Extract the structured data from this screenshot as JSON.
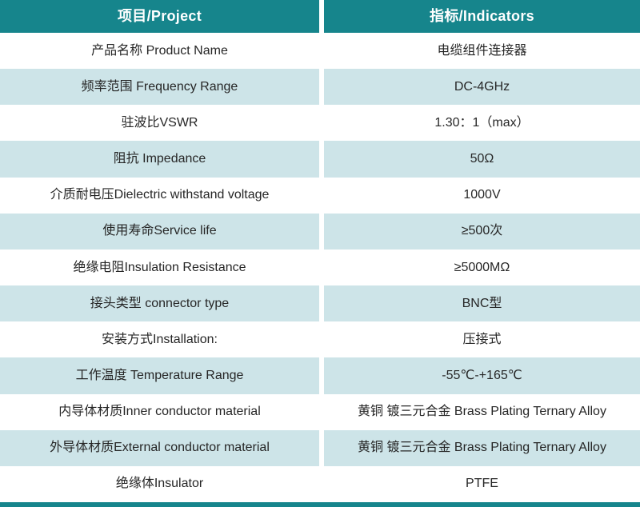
{
  "table": {
    "header": {
      "project": "项目/Project",
      "indicators": "指标/Indicators"
    },
    "rows": [
      {
        "project": "产品名称 Product Name",
        "indicator": "电缆组件连接器"
      },
      {
        "project": "频率范围 Frequency Range",
        "indicator": "DC-4GHz"
      },
      {
        "project": "驻波比VSWR",
        "indicator": "1.30：1（max）"
      },
      {
        "project": "阻抗 Impedance",
        "indicator": "50Ω"
      },
      {
        "project": "介质耐电压Dielectric withstand voltage",
        "indicator": "1000V"
      },
      {
        "project": "使用寿命Service life",
        "indicator": "≥500次"
      },
      {
        "project": "绝缘电阻Insulation Resistance",
        "indicator": "≥5000MΩ"
      },
      {
        "project": "接头类型 connector type",
        "indicator": "BNC型"
      },
      {
        "project": "安装方式Installation:",
        "indicator": "压接式"
      },
      {
        "project": "工作温度 Temperature Range",
        "indicator": "-55℃-+165℃"
      },
      {
        "project": "内导体材质Inner conductor material",
        "indicator": "黄铜 镀三元合金 Brass Plating Ternary Alloy"
      },
      {
        "project": "外导体材质External conductor material",
        "indicator": "黄铜 镀三元合金 Brass Plating Ternary Alloy"
      },
      {
        "project": "绝缘体Insulator",
        "indicator": "PTFE"
      }
    ],
    "colors": {
      "header_bg": "#16858c",
      "footer_bar": "#16858c",
      "alt_row_bg": "#cde4e8",
      "row_bg": "#ffffff",
      "header_text": "#ffffff",
      "body_text": "#262626"
    }
  }
}
